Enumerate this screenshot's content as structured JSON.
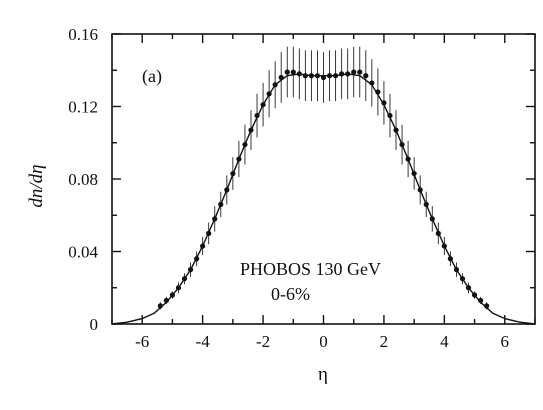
{
  "chart_data": {
    "type": "scatter",
    "title": "",
    "xlabel": "η",
    "ylabel": "dn/dη",
    "xlim": [
      -7,
      7
    ],
    "ylim": [
      0,
      0.16
    ],
    "xticks": [
      -6,
      -4,
      -2,
      0,
      2,
      4,
      6
    ],
    "yticks": [
      0,
      0.04,
      0.08,
      0.12,
      0.16
    ],
    "xtick_labels": [
      "-6",
      "-4",
      "-2",
      "0",
      "2",
      "4",
      "6"
    ],
    "ytick_labels": [
      "0",
      "0.04",
      "0.08",
      "0.12",
      "0.16"
    ],
    "grid": false,
    "panel_label": "(a)",
    "annotations": [
      "PHOBOS 130 GeV",
      "0-6%"
    ],
    "series": [
      {
        "kind": "points_with_errors",
        "x": [
          -5.4,
          -5.2,
          -5.0,
          -4.8,
          -4.6,
          -4.4,
          -4.2,
          -4.0,
          -3.8,
          -3.6,
          -3.4,
          -3.2,
          -3.0,
          -2.8,
          -2.6,
          -2.4,
          -2.2,
          -2.0,
          -1.8,
          -1.6,
          -1.4,
          -1.2,
          -1.0,
          -0.8,
          -0.6,
          -0.4,
          -0.2,
          0.0,
          0.2,
          0.4,
          0.6,
          0.8,
          1.0,
          1.2,
          1.4,
          1.6,
          1.8,
          2.0,
          2.2,
          2.4,
          2.6,
          2.8,
          3.0,
          3.2,
          3.4,
          3.6,
          3.8,
          4.0,
          4.2,
          4.4,
          4.6,
          4.8,
          5.0,
          5.2,
          5.4
        ],
        "y": [
          0.01,
          0.013,
          0.016,
          0.02,
          0.025,
          0.03,
          0.036,
          0.043,
          0.05,
          0.058,
          0.066,
          0.074,
          0.083,
          0.091,
          0.099,
          0.107,
          0.115,
          0.121,
          0.127,
          0.132,
          0.136,
          0.139,
          0.139,
          0.138,
          0.137,
          0.137,
          0.137,
          0.136,
          0.137,
          0.137,
          0.138,
          0.138,
          0.139,
          0.139,
          0.137,
          0.133,
          0.128,
          0.122,
          0.115,
          0.107,
          0.099,
          0.091,
          0.083,
          0.074,
          0.066,
          0.058,
          0.05,
          0.043,
          0.036,
          0.03,
          0.025,
          0.02,
          0.016,
          0.013,
          0.01
        ],
        "err": [
          0.002,
          0.002,
          0.002,
          0.003,
          0.003,
          0.004,
          0.004,
          0.005,
          0.006,
          0.007,
          0.007,
          0.008,
          0.009,
          0.01,
          0.011,
          0.011,
          0.012,
          0.012,
          0.013,
          0.013,
          0.014,
          0.014,
          0.014,
          0.014,
          0.014,
          0.014,
          0.014,
          0.014,
          0.014,
          0.014,
          0.014,
          0.014,
          0.014,
          0.014,
          0.014,
          0.013,
          0.013,
          0.012,
          0.012,
          0.011,
          0.011,
          0.01,
          0.009,
          0.008,
          0.007,
          0.007,
          0.006,
          0.005,
          0.004,
          0.004,
          0.003,
          0.003,
          0.002,
          0.002,
          0.002
        ]
      },
      {
        "kind": "curve",
        "x": [
          -7.0,
          -6.5,
          -6.0,
          -5.6,
          -5.2,
          -4.8,
          -4.4,
          -4.0,
          -3.6,
          -3.2,
          -2.8,
          -2.4,
          -2.0,
          -1.6,
          -1.2,
          -0.8,
          -0.4,
          0.0,
          0.4,
          0.8,
          1.2,
          1.6,
          2.0,
          2.4,
          2.8,
          3.2,
          3.6,
          4.0,
          4.4,
          4.8,
          5.2,
          5.6,
          6.0,
          6.5,
          7.0
        ],
        "y": [
          0.0,
          0.001,
          0.003,
          0.006,
          0.012,
          0.02,
          0.03,
          0.043,
          0.058,
          0.074,
          0.091,
          0.107,
          0.121,
          0.132,
          0.137,
          0.138,
          0.137,
          0.137,
          0.137,
          0.138,
          0.137,
          0.132,
          0.121,
          0.107,
          0.091,
          0.074,
          0.058,
          0.043,
          0.03,
          0.02,
          0.012,
          0.006,
          0.003,
          0.001,
          0.0
        ]
      }
    ]
  }
}
